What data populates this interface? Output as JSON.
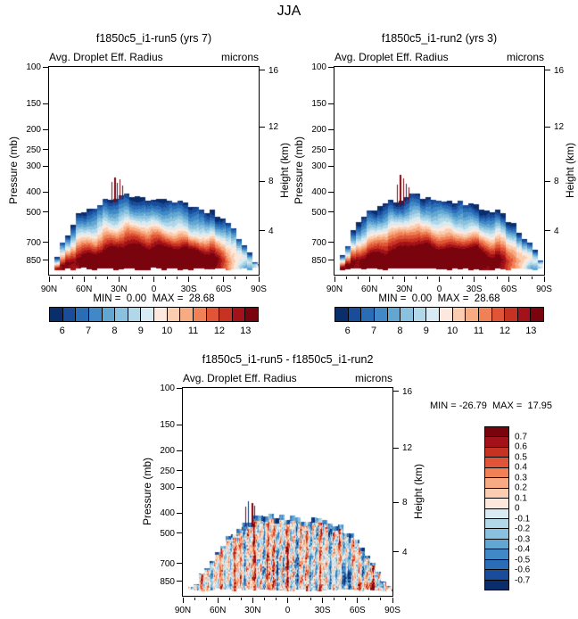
{
  "page": {
    "title": "JJA"
  },
  "axes": {
    "pressure_label": "Pressure (mb)",
    "height_label": "Height (km)",
    "pressure_ticks": [
      100,
      150,
      200,
      250,
      300,
      400,
      500,
      700,
      850
    ],
    "height_ticks": [
      16,
      12,
      8,
      4
    ],
    "height_tick_pressures": [
      104,
      194,
      356,
      616
    ],
    "lat_ticks": [
      "90N",
      "60N",
      "30N",
      "0",
      "30S",
      "60S",
      "90S"
    ]
  },
  "colorbars": {
    "mean": {
      "orientation": "horizontal",
      "colors": [
        "#0a2d6b",
        "#1a4c9c",
        "#2a6cb5",
        "#4189c6",
        "#62a6d2",
        "#8ac1de",
        "#b1d7e8",
        "#d8ebf2",
        "#fce8dc",
        "#fbcdb0",
        "#f7ab82",
        "#f08055",
        "#e05537",
        "#c73322",
        "#a31218",
        "#7a040e"
      ],
      "labels": [
        "6",
        "7",
        "8",
        "9",
        "10",
        "11",
        "12",
        "13"
      ]
    },
    "diff": {
      "orientation": "vertical",
      "colors": [
        "#0a2d6b",
        "#1a4c9c",
        "#2a6cb5",
        "#4189c6",
        "#62a6d2",
        "#8ac1de",
        "#b1d7e8",
        "#d8ebf2",
        "#fce8dc",
        "#fbcdb0",
        "#f7ab82",
        "#f08055",
        "#e05537",
        "#c73322",
        "#a31218",
        "#7a040e"
      ],
      "labels": [
        "0.7",
        "0.6",
        "0.5",
        "0.4",
        "0.3",
        "0.2",
        "0.1",
        "0",
        "-0.1",
        "-0.2",
        "-0.3",
        "-0.4",
        "-0.5",
        "-0.6",
        "-0.7"
      ]
    }
  },
  "panels": [
    {
      "title": "f1850c5_i1-run5 (yrs 7)",
      "subtitle": "Avg. Droplet Eff. Radius",
      "units": "microns",
      "stats": "MIN =  0.00  MAX =  28.68"
    },
    {
      "title": "f1850c5_i1-run2 (yrs 3)",
      "subtitle": "Avg. Droplet Eff. Radius",
      "units": "microns",
      "stats": "MIN =  0.00  MAX =  28.68"
    },
    {
      "title": "f1850c5_i1-run5 - f1850c5_i1-run2",
      "subtitle": "Avg. Droplet Eff. Radius",
      "units": "microns",
      "stats": "MIN = -26.79  MAX =  17.95"
    }
  ],
  "chart_data": [
    {
      "type": "heatmap",
      "title": "f1850c5_i1-run5 (yrs 7)",
      "variable": "Avg. Droplet Eff. Radius",
      "season": "JJA",
      "units": "microns",
      "kind": "mean",
      "seed": 1,
      "colorbar": "mean",
      "min": 0.0,
      "max": 28.68,
      "levels": {
        "min": 5.5,
        "step": 0.5,
        "n": 16
      },
      "x_axis": {
        "label": "Latitude",
        "ticks": [
          "90N",
          "60N",
          "30N",
          "0",
          "30S",
          "60S",
          "90S"
        ]
      },
      "y_left": {
        "label": "Pressure (mb)",
        "scale": "log",
        "range": [
          100,
          1000
        ],
        "ticks": [
          100,
          150,
          200,
          250,
          300,
          400,
          500,
          700,
          850
        ]
      },
      "y_right": {
        "label": "Height (km)",
        "ticks": [
          16,
          12,
          8,
          4
        ]
      },
      "cloud_top_profile": {
        "lat_frac": [
          0.0,
          0.02,
          0.05,
          0.08,
          0.11,
          0.14,
          0.18,
          0.22,
          0.26,
          0.3,
          0.33,
          0.36,
          0.4,
          0.45,
          0.5,
          0.55,
          0.6,
          0.65,
          0.7,
          0.75,
          0.8,
          0.84,
          0.88,
          0.92,
          0.96,
          1.0
        ],
        "pressure": [
          965,
          905,
          770,
          650,
          575,
          520,
          485,
          462,
          445,
          430,
          418,
          410,
          416,
          424,
          432,
          440,
          448,
          458,
          470,
          484,
          508,
          545,
          605,
          685,
          790,
          905
        ]
      },
      "base_pressure": 945,
      "spikes": [
        {
          "t": 0.3,
          "p": 358,
          "v": 13.4
        },
        {
          "t": 0.312,
          "p": 340,
          "v": 13.4,
          "w": 2
        },
        {
          "t": 0.326,
          "p": 362,
          "v": 5.6
        },
        {
          "t": 0.338,
          "p": 346,
          "v": 13.4
        },
        {
          "t": 0.352,
          "p": 374,
          "v": 13.4
        }
      ]
    },
    {
      "type": "heatmap",
      "title": "f1850c5_i1-run2 (yrs 3)",
      "variable": "Avg. Droplet Eff. Radius",
      "season": "JJA",
      "units": "microns",
      "kind": "mean",
      "seed": 2,
      "colorbar": "mean",
      "min": 0.0,
      "max": 28.68,
      "levels": {
        "min": 5.5,
        "step": 0.5,
        "n": 16
      },
      "x_axis": {
        "label": "Latitude",
        "ticks": [
          "90N",
          "60N",
          "30N",
          "0",
          "30S",
          "60S",
          "90S"
        ]
      },
      "y_left": {
        "label": "Pressure (mb)",
        "scale": "log",
        "range": [
          100,
          1000
        ],
        "ticks": [
          100,
          150,
          200,
          250,
          300,
          400,
          500,
          700,
          850
        ]
      },
      "y_right": {
        "label": "Height (km)",
        "ticks": [
          16,
          12,
          8,
          4
        ]
      },
      "cloud_top_profile": {
        "lat_frac": [
          0.0,
          0.02,
          0.05,
          0.08,
          0.11,
          0.14,
          0.18,
          0.22,
          0.26,
          0.3,
          0.33,
          0.36,
          0.4,
          0.45,
          0.5,
          0.55,
          0.6,
          0.65,
          0.7,
          0.75,
          0.8,
          0.84,
          0.88,
          0.92,
          0.96,
          1.0
        ],
        "pressure": [
          965,
          905,
          770,
          650,
          575,
          520,
          485,
          462,
          445,
          430,
          418,
          410,
          416,
          424,
          432,
          440,
          448,
          458,
          470,
          484,
          508,
          545,
          605,
          685,
          790,
          905
        ]
      },
      "base_pressure": 945,
      "spikes": [
        {
          "t": 0.298,
          "p": 370,
          "v": 13.4
        },
        {
          "t": 0.314,
          "p": 332,
          "v": 13.4,
          "w": 2
        },
        {
          "t": 0.328,
          "p": 344,
          "v": 13.4
        },
        {
          "t": 0.344,
          "p": 366,
          "v": 5.6
        },
        {
          "t": 0.356,
          "p": 380,
          "v": 13.4
        }
      ]
    },
    {
      "type": "heatmap",
      "title": "f1850c5_i1-run5 - f1850c5_i1-run2",
      "variable": "Avg. Droplet Eff. Radius",
      "season": "JJA",
      "units": "microns",
      "kind": "diff",
      "seed": 3,
      "colorbar": "diff",
      "min": -26.79,
      "max": 17.95,
      "levels": {
        "min": -0.8,
        "step": 0.1,
        "n": 16
      },
      "x_axis": {
        "label": "Latitude",
        "ticks": [
          "90N",
          "60N",
          "30N",
          "0",
          "30S",
          "60S",
          "90S"
        ]
      },
      "y_left": {
        "label": "Pressure (mb)",
        "scale": "log",
        "range": [
          100,
          1000
        ],
        "ticks": [
          100,
          150,
          200,
          250,
          300,
          400,
          500,
          700,
          850
        ]
      },
      "y_right": {
        "label": "Height (km)",
        "ticks": [
          16,
          12,
          8,
          4
        ]
      },
      "cloud_top_profile": {
        "lat_frac": [
          0.0,
          0.03,
          0.06,
          0.1,
          0.14,
          0.18,
          0.22,
          0.26,
          0.3,
          0.34,
          0.4,
          0.5,
          0.6,
          0.66,
          0.72,
          0.78,
          0.82,
          0.86,
          0.9,
          0.95,
          1.0
        ],
        "pressure": [
          985,
          950,
          880,
          765,
          660,
          580,
          522,
          472,
          440,
          420,
          414,
          420,
          426,
          434,
          452,
          480,
          525,
          595,
          685,
          805,
          930
        ]
      },
      "base_pressure": 945,
      "spikes": [
        {
          "t": 0.3,
          "p": 374,
          "v": 0.75
        },
        {
          "t": 0.314,
          "p": 352,
          "v": -0.75
        },
        {
          "t": 0.328,
          "p": 358,
          "v": 0.75,
          "w": 2
        },
        {
          "t": 0.342,
          "p": 370,
          "v": 0.75
        }
      ]
    }
  ]
}
